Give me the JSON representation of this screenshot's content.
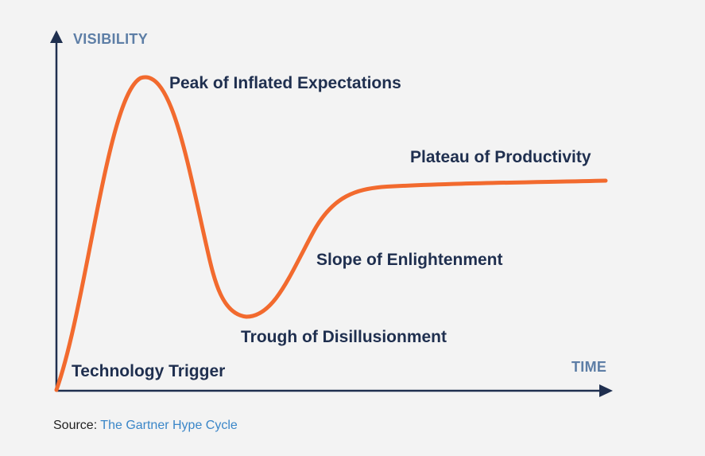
{
  "axes": {
    "y_label": "VISIBILITY",
    "x_label": "TIME"
  },
  "phases": [
    {
      "id": "technology-trigger",
      "label": "Technology Trigger"
    },
    {
      "id": "peak",
      "label": "Peak of Inflated Expectations"
    },
    {
      "id": "trough",
      "label": "Trough of Disillusionment"
    },
    {
      "id": "slope",
      "label": "Slope of Enlightenment"
    },
    {
      "id": "plateau",
      "label": "Plateau of Productivity"
    }
  ],
  "source": {
    "prefix": "Source:",
    "link_text": "The Gartner Hype Cycle"
  },
  "colors": {
    "curve": "#f26a2e",
    "axis": "#1f2f4f",
    "axis_title": "#5d7ea6",
    "label": "#1f2f4f",
    "link": "#3a86c8",
    "background": "#f3f3f3"
  }
}
